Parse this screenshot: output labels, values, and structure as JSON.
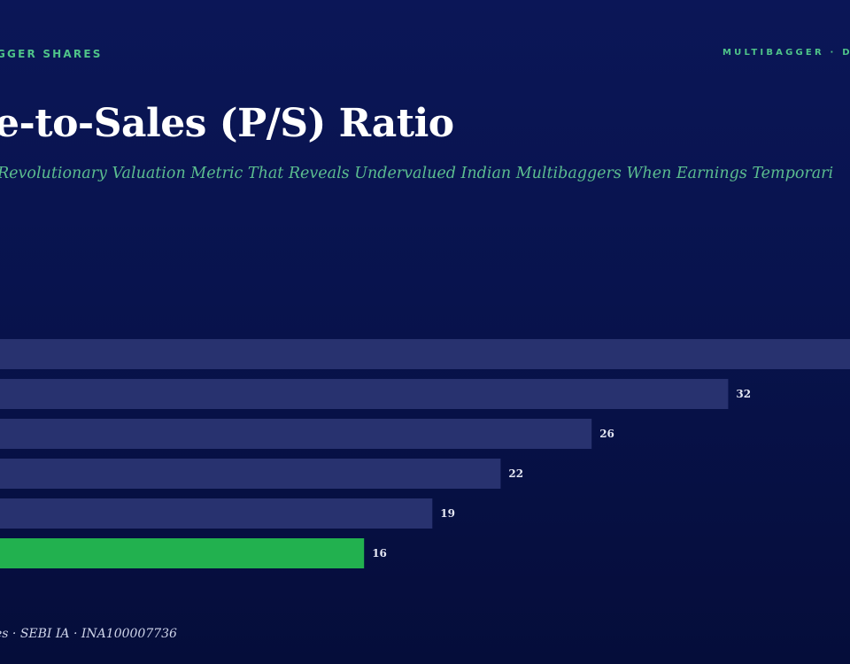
{
  "header": {
    "brand_left": "GGER SHARES",
    "brand_right": "MULTIBAGGER · D"
  },
  "title": "e-to-Sales (P/S) Ratio",
  "subtitle": "Revolutionary Valuation Metric That Reveals Undervalued Indian Multibaggers When Earnings Temporari",
  "footer": "es · SEBI IA · INA100007736",
  "colors": {
    "bar": "#28326f",
    "highlight_bar": "#22b14f",
    "label": "#e4e7f3",
    "accent_text": "#4fc489"
  },
  "chart_data": {
    "type": "bar",
    "orientation": "horizontal",
    "values": [
      40,
      32,
      26,
      22,
      19,
      16
    ],
    "value_labels": [
      "",
      "32",
      "26",
      "22",
      "19",
      "16"
    ],
    "highlight_index": 5,
    "xlim": [
      0,
      38.5
    ],
    "grid": false
  }
}
